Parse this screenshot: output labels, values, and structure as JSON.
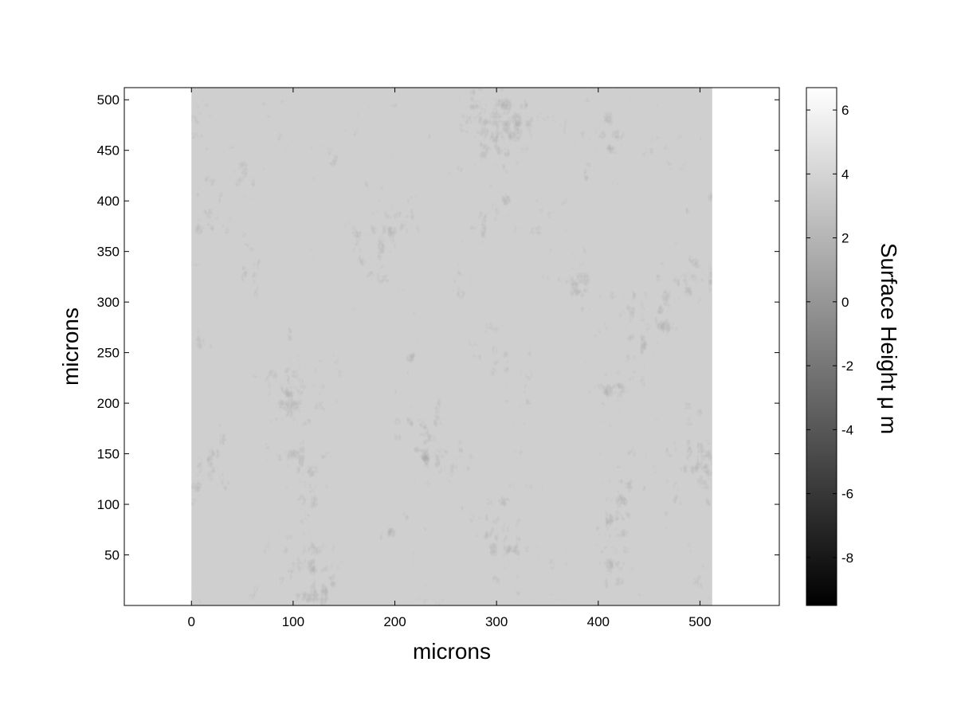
{
  "chart_data": {
    "type": "heatmap",
    "title": "",
    "xlabel": "microns",
    "ylabel": "microns",
    "xlim": [
      -66,
      578
    ],
    "ylim": [
      0,
      512
    ],
    "image_extent": {
      "x": [
        0,
        512
      ],
      "y": [
        0,
        512
      ]
    },
    "x_ticks": [
      0,
      100,
      200,
      300,
      400,
      500
    ],
    "y_ticks": [
      50,
      100,
      150,
      200,
      250,
      300,
      350,
      400,
      450,
      500
    ],
    "colormap": "gray",
    "colorbar": {
      "label": "Surface Height μ m",
      "range": [
        -9.5,
        6.7
      ],
      "ticks": [
        -8,
        -6,
        -4,
        -2,
        0,
        2,
        4,
        6
      ],
      "placement": "right"
    },
    "grid": false,
    "notes": "Grayscale surface-height map; mean around 0 to 1 μm with darker pits/ridges to about -8 and bright spots near 5."
  }
}
